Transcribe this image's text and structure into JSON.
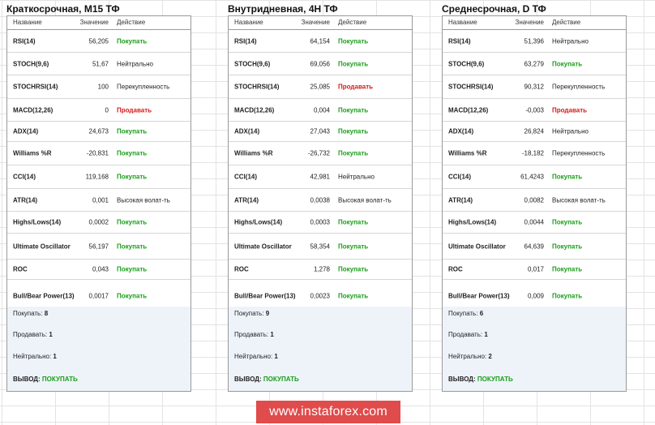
{
  "panels": [
    {
      "title": "Краткосрочная, M15 ТФ",
      "headers": {
        "name": "Название",
        "value": "Значение",
        "action": "Действие"
      },
      "rows": [
        {
          "name": "RSI(14)",
          "value": "56,205",
          "action": "Покупать",
          "type": "buy"
        },
        {
          "name": "STOCH(9,6)",
          "value": "51,67",
          "action": "Нейтрально",
          "type": "neutral"
        },
        {
          "name": "STOCHRSI(14)",
          "value": "100",
          "action": "Перекупленность",
          "type": "neutral"
        },
        {
          "name": "MACD(12,26)",
          "value": "0",
          "action": "Продавать",
          "type": "sell"
        },
        {
          "name": "ADX(14)",
          "value": "24,673",
          "action": "Покупать",
          "type": "buy"
        },
        {
          "name": "Williams %R",
          "value": "-20,831",
          "action": "Покупать",
          "type": "buy"
        },
        {
          "name": "CCI(14)",
          "value": "119,168",
          "action": "Покупать",
          "type": "buy"
        },
        {
          "name": "ATR(14)",
          "value": "0,001",
          "action": "Высокая волат-ть",
          "type": "neutral"
        },
        {
          "name": "Highs/Lows(14)",
          "value": "0,0002",
          "action": "Покупать",
          "type": "buy"
        },
        {
          "name": "Ultimate Oscillator",
          "value": "56,197",
          "action": "Покупать",
          "type": "buy"
        },
        {
          "name": "ROC",
          "value": "0,043",
          "action": "Покупать",
          "type": "buy"
        },
        {
          "name": "Bull/Bear Power(13)",
          "value": "0,0017",
          "action": "Покупать",
          "type": "buy"
        }
      ],
      "summary": {
        "buy_label": "Покупать:",
        "buy": "8",
        "sell_label": "Продавать:",
        "sell": "1",
        "neutral_label": "Нейтрально:",
        "neutral": "1",
        "verdict_label": "ВЫВОД:",
        "verdict": "ПОКУПАТЬ"
      }
    },
    {
      "title": "Внутридневная, 4H ТФ",
      "headers": {
        "name": "Название",
        "value": "Значение",
        "action": "Действие"
      },
      "rows": [
        {
          "name": "RSI(14)",
          "value": "64,154",
          "action": "Покупать",
          "type": "buy"
        },
        {
          "name": "STOCH(9,6)",
          "value": "69,056",
          "action": "Покупать",
          "type": "buy"
        },
        {
          "name": "STOCHRSI(14)",
          "value": "25,085",
          "action": "Продавать",
          "type": "sell"
        },
        {
          "name": "MACD(12,26)",
          "value": "0,004",
          "action": "Покупать",
          "type": "buy"
        },
        {
          "name": "ADX(14)",
          "value": "27,043",
          "action": "Покупать",
          "type": "buy"
        },
        {
          "name": "Williams %R",
          "value": "-26,732",
          "action": "Покупать",
          "type": "buy"
        },
        {
          "name": "CCI(14)",
          "value": "42,981",
          "action": "Нейтрально",
          "type": "neutral"
        },
        {
          "name": "ATR(14)",
          "value": "0,0038",
          "action": "Высокая волат-ть",
          "type": "neutral"
        },
        {
          "name": "Highs/Lows(14)",
          "value": "0,0003",
          "action": "Покупать",
          "type": "buy"
        },
        {
          "name": "Ultimate Oscillator",
          "value": "58,354",
          "action": "Покупать",
          "type": "buy"
        },
        {
          "name": "ROC",
          "value": "1,278",
          "action": "Покупать",
          "type": "buy"
        },
        {
          "name": "Bull/Bear Power(13)",
          "value": "0,0023",
          "action": "Покупать",
          "type": "buy"
        }
      ],
      "summary": {
        "buy_label": "Покупать:",
        "buy": "9",
        "sell_label": "Продавать:",
        "sell": "1",
        "neutral_label": "Нейтрально:",
        "neutral": "1",
        "verdict_label": "ВЫВОД:",
        "verdict": "ПОКУПАТЬ"
      }
    },
    {
      "title": "Среднесрочная, D ТФ",
      "headers": {
        "name": "Название",
        "value": "Значение",
        "action": "Действие"
      },
      "rows": [
        {
          "name": "RSI(14)",
          "value": "51,396",
          "action": "Нейтрально",
          "type": "neutral"
        },
        {
          "name": "STOCH(9,6)",
          "value": "63,279",
          "action": "Покупать",
          "type": "buy"
        },
        {
          "name": "STOCHRSI(14)",
          "value": "90,312",
          "action": "Перекупленность",
          "type": "neutral"
        },
        {
          "name": "MACD(12,26)",
          "value": "-0,003",
          "action": "Продавать",
          "type": "sell"
        },
        {
          "name": "ADX(14)",
          "value": "26,824",
          "action": "Нейтрально",
          "type": "neutral"
        },
        {
          "name": "Williams %R",
          "value": "-18,182",
          "action": "Перекупленность",
          "type": "neutral"
        },
        {
          "name": "CCI(14)",
          "value": "61,4243",
          "action": "Покупать",
          "type": "buy"
        },
        {
          "name": "ATR(14)",
          "value": "0,0082",
          "action": "Высокая волат-ть",
          "type": "neutral"
        },
        {
          "name": "Highs/Lows(14)",
          "value": "0,0044",
          "action": "Покупать",
          "type": "buy"
        },
        {
          "name": "Ultimate Oscillator",
          "value": "64,639",
          "action": "Покупать",
          "type": "buy"
        },
        {
          "name": "ROC",
          "value": "0,017",
          "action": "Покупать",
          "type": "buy"
        },
        {
          "name": "Bull/Bear Power(13)",
          "value": "0,009",
          "action": "Покупать",
          "type": "buy"
        }
      ],
      "summary": {
        "buy_label": "Покупать:",
        "buy": "6",
        "sell_label": "Продавать:",
        "sell": "1",
        "neutral_label": "Нейтрально:",
        "neutral": "2",
        "verdict_label": "ВЫВОД:",
        "verdict": "ПОКУПАТЬ"
      }
    }
  ],
  "watermark": "www.instaforex.com",
  "colors": {
    "buy": "#1a9e1a",
    "sell": "#d71818",
    "summary_bg": "#eef3fa",
    "watermark_bg": "#e04b4b"
  }
}
